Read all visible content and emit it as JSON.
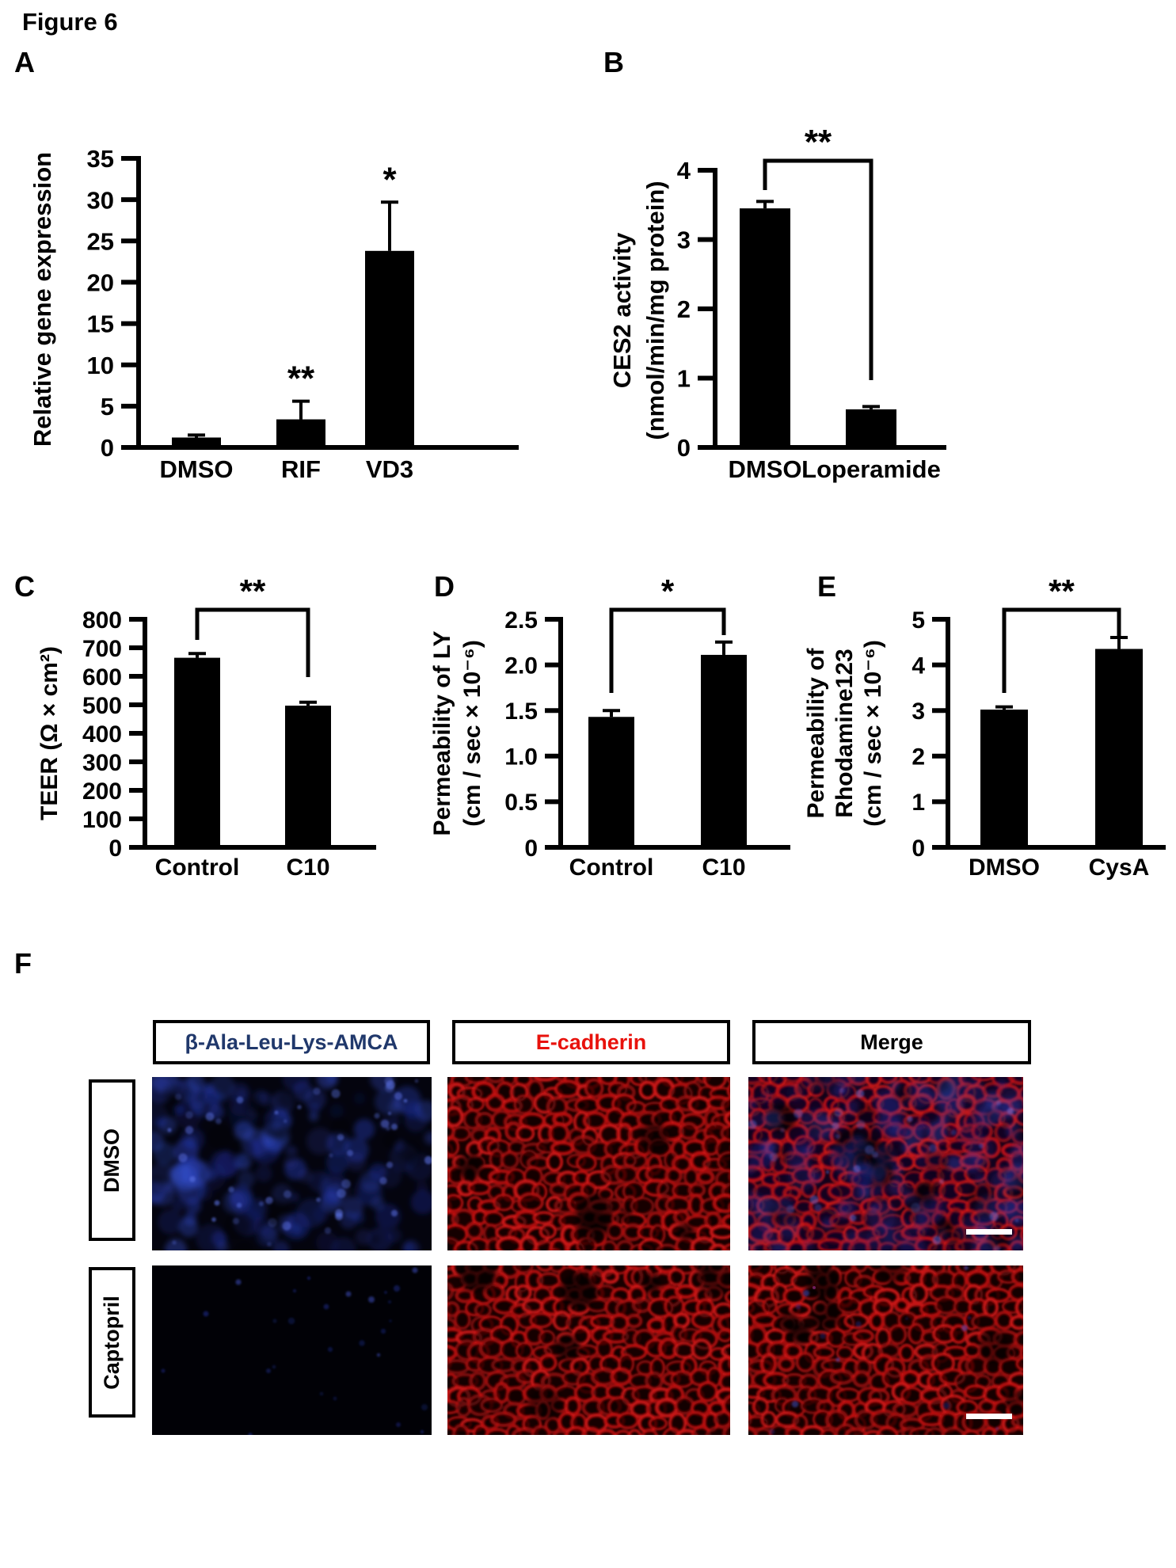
{
  "figure_title": "Figure 6",
  "panels": {
    "a": "A",
    "b": "B",
    "c": "C",
    "d": "D",
    "e": "E",
    "f": "F"
  },
  "chart_data": [
    {
      "panel": "A",
      "type": "bar",
      "categories": [
        "DMSO",
        "RIF",
        "VD3"
      ],
      "values": [
        1.2,
        3.4,
        23.8
      ],
      "errors": [
        0.3,
        2.2,
        5.9
      ],
      "ylabel": "Relative gene expression",
      "xlabel": "",
      "ylim": [
        0,
        35
      ],
      "yticks": [
        "0",
        "5",
        "10",
        "15",
        "20",
        "25",
        "30",
        "35"
      ],
      "grid": false,
      "bar_color": "#000000",
      "annotations": [
        {
          "bar": "RIF",
          "label": "**"
        },
        {
          "bar": "VD3",
          "label": "*"
        }
      ]
    },
    {
      "panel": "B",
      "type": "bar",
      "categories": [
        "DMSO",
        "Loperamide"
      ],
      "values": [
        3.45,
        0.55
      ],
      "errors": [
        0.1,
        0.04
      ],
      "ylabel_lines": [
        "CES2 activity",
        "(nmol/min/mg protein)"
      ],
      "xlabel": "",
      "ylim": [
        0,
        4
      ],
      "yticks": [
        "0",
        "1",
        "2",
        "3",
        "4"
      ],
      "grid": false,
      "bar_color": "#000000",
      "significance": {
        "label": "**",
        "between": [
          "DMSO",
          "Loperamide"
        ]
      }
    },
    {
      "panel": "C",
      "type": "bar",
      "categories": [
        "Control",
        "C10"
      ],
      "values": [
        665,
        497
      ],
      "errors": [
        15,
        12
      ],
      "ylabel": "TEER (Ω × cm²)",
      "xlabel": "",
      "ylim": [
        0,
        800
      ],
      "yticks": [
        "0",
        "100",
        "200",
        "300",
        "400",
        "500",
        "600",
        "700",
        "800"
      ],
      "grid": false,
      "bar_color": "#000000",
      "significance": {
        "label": "**",
        "between": [
          "Control",
          "C10"
        ]
      }
    },
    {
      "panel": "D",
      "type": "bar",
      "categories": [
        "Control",
        "C10"
      ],
      "values": [
        1.43,
        2.11
      ],
      "errors": [
        0.07,
        0.14
      ],
      "ylabel_lines": [
        "Permeability of LY",
        "(cm / sec × 10⁻⁶)"
      ],
      "xlabel": "",
      "ylim": [
        0,
        2.5
      ],
      "yticks": [
        "0",
        "0.5",
        "1.0",
        "1.5",
        "2.0",
        "2.5"
      ],
      "grid": false,
      "bar_color": "#000000",
      "significance": {
        "label": "*",
        "between": [
          "Control",
          "C10"
        ]
      }
    },
    {
      "panel": "E",
      "type": "bar",
      "categories": [
        "DMSO",
        "CysA"
      ],
      "values": [
        3.02,
        4.35
      ],
      "errors": [
        0.06,
        0.25
      ],
      "ylabel_lines": [
        "Permeability of",
        "Rhodamine123",
        "(cm / sec × 10⁻⁶)"
      ],
      "xlabel": "",
      "ylim": [
        0,
        5
      ],
      "yticks": [
        "0",
        "1",
        "2",
        "3",
        "4",
        "5"
      ],
      "grid": false,
      "bar_color": "#000000",
      "significance": {
        "label": "**",
        "between": [
          "DMSO",
          "CysA"
        ]
      }
    }
  ],
  "panel_f": {
    "columns": [
      {
        "label": "β-Ala-Leu-Lys-AMCA",
        "color": "#20386b"
      },
      {
        "label": "E-cadherin",
        "color": "#e8120c"
      },
      {
        "label": "Merge",
        "color": "#000000"
      }
    ],
    "rows": [
      "DMSO",
      "Captopril"
    ],
    "micrographs": [
      {
        "row": "DMSO",
        "column": "β-Ala-Leu-Lys-AMCA",
        "appearance": "bright-blue-fluorescence",
        "scale_bar": false
      },
      {
        "row": "DMSO",
        "column": "E-cadherin",
        "appearance": "red-membrane-network",
        "scale_bar": false
      },
      {
        "row": "DMSO",
        "column": "Merge",
        "appearance": "red-network-with-blue-overlay",
        "scale_bar": true
      },
      {
        "row": "Captopril",
        "column": "β-Ala-Leu-Lys-AMCA",
        "appearance": "near-black-faint-blue",
        "scale_bar": false
      },
      {
        "row": "Captopril",
        "column": "E-cadherin",
        "appearance": "red-membrane-network",
        "scale_bar": false
      },
      {
        "row": "Captopril",
        "column": "Merge",
        "appearance": "red-network-minimal-blue",
        "scale_bar": true
      }
    ],
    "colors": {
      "blue_signal": "#2a41c4",
      "red_signal": "#cf1414",
      "scale_bar": "#ffffff"
    }
  }
}
